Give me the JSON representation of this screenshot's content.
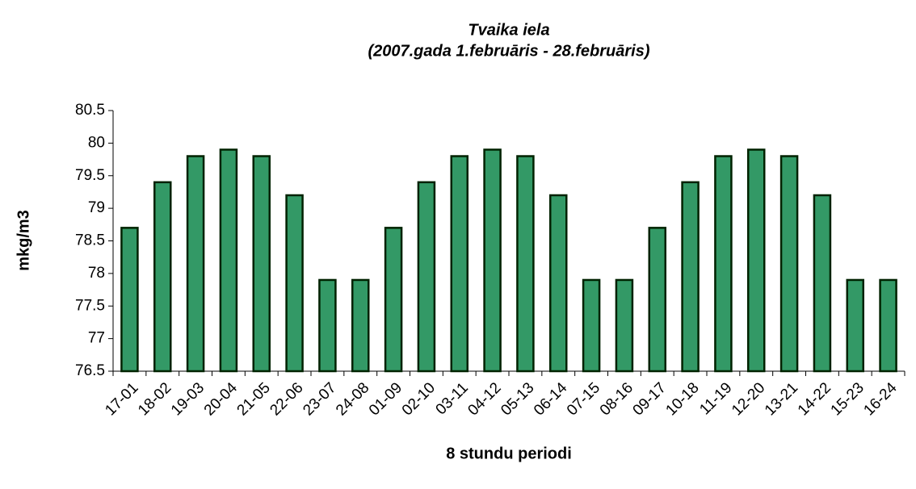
{
  "chart_data": {
    "type": "bar",
    "title": "Tvaika iela",
    "subtitle": "(2007.gada 1.februāris - 28.februāris)",
    "x_label": "8 stundu periodi",
    "y_label": "mkg/m3",
    "categories": [
      "17-01",
      "18-02",
      "19-03",
      "20-04",
      "21-05",
      "22-06",
      "23-07",
      "24-08",
      "01-09",
      "02-10",
      "03-11",
      "04-12",
      "05-13",
      "06-14",
      "07-15",
      "08-16",
      "09-17",
      "10-18",
      "11-19",
      "12-20",
      "13-21",
      "14-22",
      "15-23",
      "16-24"
    ],
    "values": [
      78.7,
      79.4,
      79.8,
      79.9,
      79.8,
      79.2,
      77.9,
      77.9,
      78.7,
      79.4,
      79.8,
      79.9,
      79.8,
      79.2,
      77.9,
      77.9,
      78.7,
      79.4,
      79.8,
      79.9,
      79.8,
      79.2,
      77.9,
      77.9
    ],
    "color": "#339966",
    "ylim": [
      76.5,
      80.5
    ],
    "yticks": [
      76.5,
      77,
      77.5,
      78,
      78.5,
      79,
      79.5,
      80,
      80.5
    ],
    "grid": false
  }
}
